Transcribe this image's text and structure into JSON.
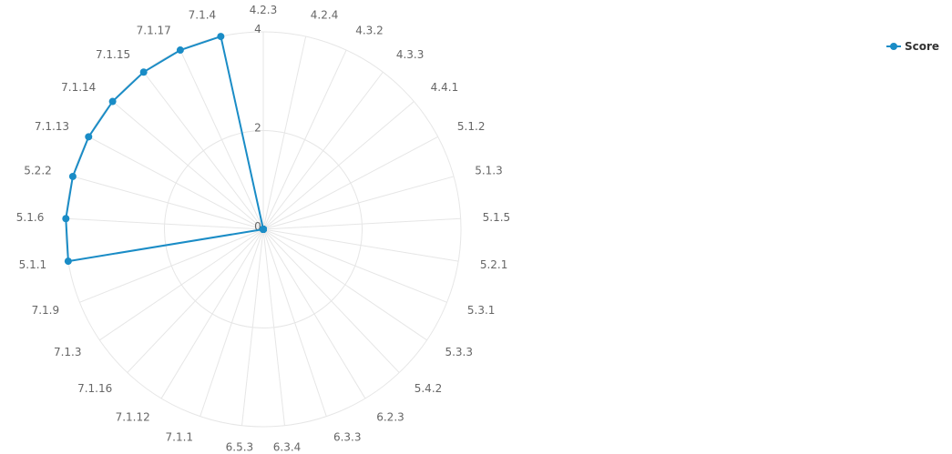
{
  "chart_data": {
    "type": "radar",
    "categories": [
      "4.2.3",
      "4.2.4",
      "4.3.2",
      "4.3.3",
      "4.4.1",
      "5.1.2",
      "5.1.3",
      "5.1.5",
      "5.2.1",
      "5.3.1",
      "5.3.3",
      "5.4.2",
      "6.2.3",
      "6.3.3",
      "6.3.4",
      "6.5.3",
      "7.1.1",
      "7.1.12",
      "7.1.16",
      "7.1.3",
      "7.1.9",
      "5.1.1",
      "5.1.6",
      "5.2.2",
      "7.1.13",
      "7.1.14",
      "7.1.15",
      "7.1.17",
      "7.1.4"
    ],
    "series": [
      {
        "name": "Score",
        "values": [
          0,
          0,
          0,
          0,
          0,
          0,
          0,
          0,
          0,
          0,
          0,
          0,
          0,
          0,
          0,
          0,
          0,
          0,
          0,
          0,
          0,
          4,
          4,
          4,
          4,
          4,
          4,
          4,
          4
        ]
      }
    ],
    "radial_ticks": [
      "0",
      "2",
      "4"
    ],
    "rmax": 4,
    "legend": "top-right",
    "grid": true
  },
  "colors": {
    "series": "#1a8cc6",
    "grid": "#e6e6e6",
    "label": "#666666"
  },
  "legend_label": "Score"
}
